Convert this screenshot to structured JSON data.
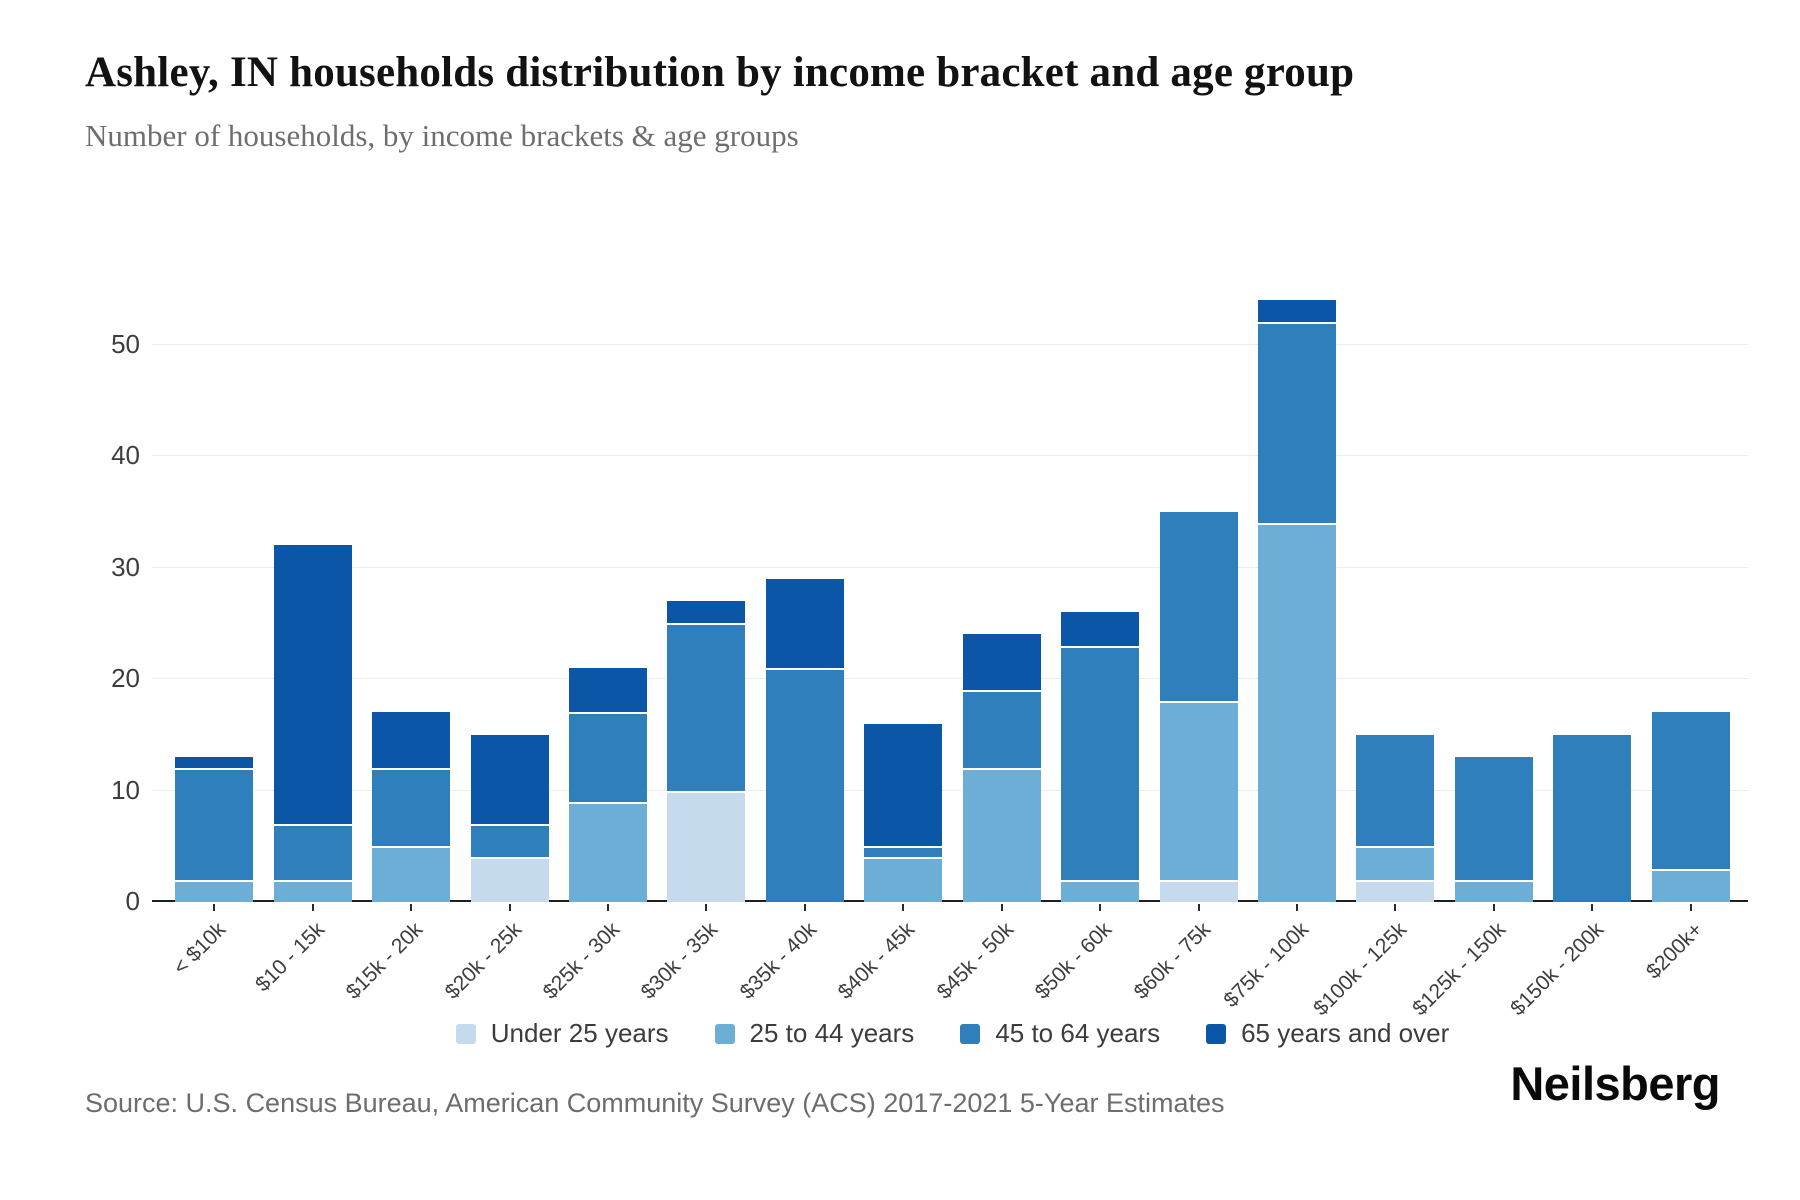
{
  "header": {
    "title": "Ashley, IN households distribution by income bracket and age group",
    "subtitle": "Number of households, by income brackets & age groups"
  },
  "source": {
    "text": "Source: U.S. Census Bureau, American Community Survey (ACS) 2017-2021 5-Year Estimates"
  },
  "brand": {
    "text": "Neilsberg"
  },
  "colors": {
    "under_25": "#c5daed",
    "age_25_44": "#6caed6",
    "age_45_64": "#2f7fbc",
    "age_65_over": "#0b56a7",
    "gridline": "#ededed",
    "axis": "#1f1f1f"
  },
  "chart_data": {
    "type": "bar",
    "stacked": true,
    "title": "Ashley, IN households distribution by income bracket and age group",
    "xlabel": "",
    "ylabel": "Number of households",
    "categories": [
      "< $10k",
      "$10 - 15k",
      "$15k - 20k",
      "$20k - 25k",
      "$25k - 30k",
      "$30k - 35k",
      "$35k - 40k",
      "$40k - 45k",
      "$45k - 50k",
      "$50k - 60k",
      "$60k - 75k",
      "$75k - 100k",
      "$100k - 125k",
      "$125k - 150k",
      "$150k - 200k",
      "$200k+"
    ],
    "series": [
      {
        "name": "Under 25 years",
        "color": "#c5daed",
        "values": [
          0,
          0,
          0,
          4,
          0,
          10,
          0,
          0,
          0,
          0,
          2,
          0,
          2,
          0,
          0,
          0
        ]
      },
      {
        "name": "25 to 44 years",
        "color": "#6caed6",
        "values": [
          2,
          2,
          5,
          0,
          9,
          0,
          0,
          4,
          12,
          2,
          16,
          34,
          3,
          2,
          0,
          3
        ]
      },
      {
        "name": "45 to 64 years",
        "color": "#2f7fbc",
        "values": [
          10,
          5,
          7,
          3,
          8,
          15,
          21,
          1,
          7,
          21,
          17,
          18,
          10,
          11,
          15,
          14
        ]
      },
      {
        "name": "65 years and over",
        "color": "#0b56a7",
        "values": [
          1,
          25,
          5,
          8,
          4,
          2,
          8,
          11,
          5,
          3,
          0,
          2,
          0,
          0,
          0,
          0
        ]
      }
    ],
    "totals": [
      13,
      32,
      17,
      15,
      21,
      27,
      29,
      16,
      24,
      26,
      35,
      54,
      15,
      13,
      15,
      17
    ],
    "y_ticks": [
      0,
      10,
      20,
      30,
      40,
      50
    ],
    "ylim": [
      0,
      59
    ],
    "grid": "horizontal",
    "legend_position": "bottom"
  }
}
